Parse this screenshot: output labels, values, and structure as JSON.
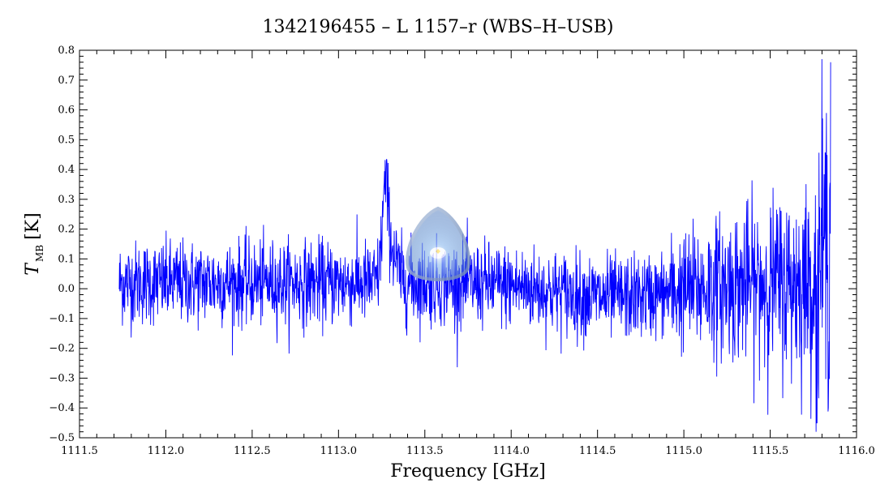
{
  "chart_data": {
    "type": "line",
    "title": "1342196455 – L 1157–r (WBS–H–USB)",
    "xlabel": "Frequency [GHz]",
    "ylabel_main": "T",
    "ylabel_sub": "MB",
    "ylabel_unit": "[K]",
    "xlim": [
      1111.5,
      1116.0
    ],
    "ylim": [
      -0.5,
      0.8
    ],
    "x_ticks": [
      "1111.5",
      "1112.0",
      "1112.5",
      "1113.0",
      "1113.5",
      "1114.0",
      "1114.5",
      "1115.0",
      "1115.5",
      "1116.0"
    ],
    "y_ticks": [
      "−0.5",
      "−0.4",
      "−0.3",
      "−0.2",
      "−0.1",
      "0.0",
      "0.1",
      "0.2",
      "0.3",
      "0.4",
      "0.5",
      "0.6",
      "0.7",
      "0.8"
    ],
    "series": [
      {
        "color": "#0000ff",
        "x_range": [
          1111.73,
          1115.85
        ],
        "baseline_rms": 0.07,
        "line_peak": {
          "x": 1113.27,
          "y": 0.36
        },
        "min_point": {
          "x": 1115.77,
          "y": -0.45
        },
        "max_point": {
          "x": 1115.85,
          "y": 0.76
        }
      }
    ],
    "grid": false
  },
  "watermark": {
    "name": "water-drop-watermark",
    "colors": [
      "#5b8fd6",
      "#ffffff"
    ]
  }
}
